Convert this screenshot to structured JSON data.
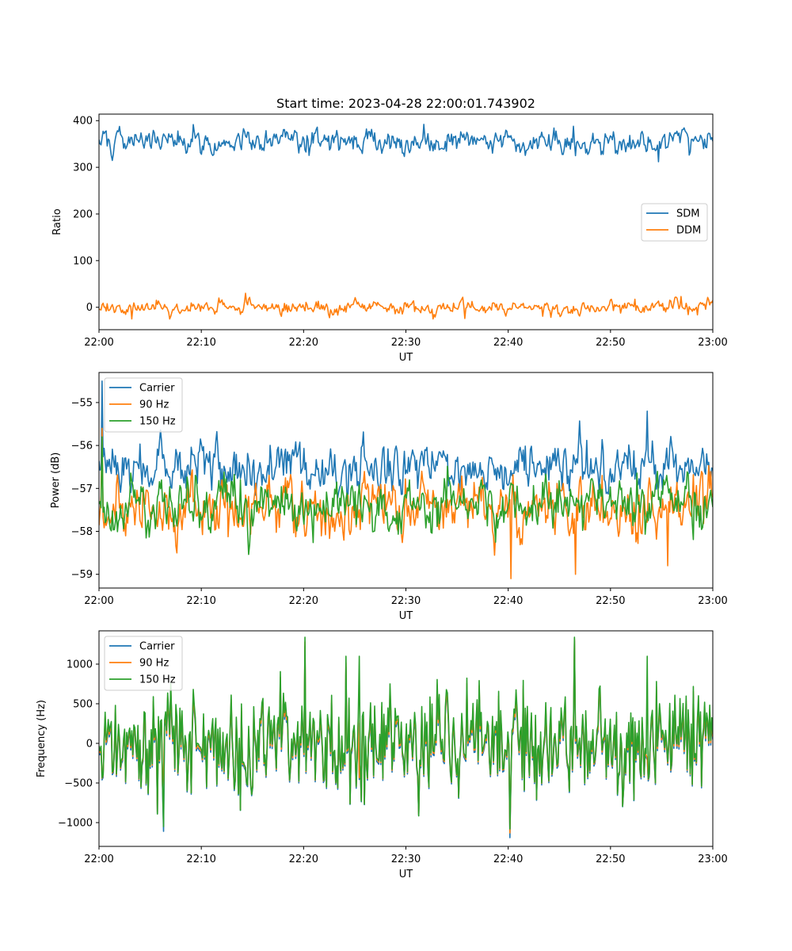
{
  "chart_data": [
    {
      "type": "line",
      "title": "Start time: 2023-04-28 22:00:01.743902",
      "xlabel": "UT",
      "ylabel": "Ratio",
      "x_range": [
        "22:00",
        "23:00"
      ],
      "x_ticks": [
        "22:00",
        "22:10",
        "22:20",
        "22:30",
        "22:40",
        "22:50",
        "23:00"
      ],
      "ylim": [
        -48,
        414
      ],
      "y_ticks": [
        400,
        300,
        200,
        100,
        0
      ],
      "y_tick_labels": [
        "400",
        "300",
        "200",
        "100",
        "0"
      ],
      "grid": false,
      "legend_position": "center-right",
      "series": [
        {
          "name": "SDM",
          "color": "#1f77b4",
          "mean": 357,
          "spread": 13,
          "min": 312,
          "max": 392,
          "peaks": [
            {
              "x": "22:31.8",
              "y": 392
            },
            {
              "x": "22:46.4",
              "y": 388
            }
          ],
          "dips": [
            {
              "x": "22:54.7",
              "y": 312
            },
            {
              "x": "22:46.6",
              "y": 325
            }
          ]
        },
        {
          "name": "DDM",
          "color": "#ff7f0e",
          "mean": 0,
          "spread": 8,
          "min": -25,
          "max": 30,
          "peaks": [
            {
              "x": "22:14.3",
              "y": 30
            }
          ],
          "dips": [
            {
              "x": "22:03.2",
              "y": -25
            },
            {
              "x": "22:35.8",
              "y": -24
            }
          ]
        }
      ]
    },
    {
      "type": "line",
      "title": "",
      "xlabel": "UT",
      "ylabel": "Power (dB)",
      "x_range": [
        "22:00",
        "23:00"
      ],
      "x_ticks": [
        "22:00",
        "22:10",
        "22:20",
        "22:30",
        "22:40",
        "22:50",
        "23:00"
      ],
      "ylim": [
        -59.32,
        -54.3
      ],
      "y_ticks": [
        -55,
        -56,
        -57,
        -58,
        -59
      ],
      "y_tick_labels": [
        "−55",
        "−56",
        "−57",
        "−58",
        "−59"
      ],
      "grid": false,
      "legend_position": "top-left",
      "series": [
        {
          "name": "Carrier",
          "color": "#1f77b4",
          "mean": -56.5,
          "spread": 0.3,
          "min": -57.6,
          "max": -54.5,
          "peaks": [
            {
              "x": "22:00.3",
              "y": -54.5
            },
            {
              "x": "22:53.6",
              "y": -55.2
            }
          ],
          "dips": []
        },
        {
          "name": "90 Hz",
          "color": "#ff7f0e",
          "mean": -57.5,
          "spread": 0.35,
          "min": -59.1,
          "max": -55.6,
          "peaks": [
            {
              "x": "22:00.3",
              "y": -55.6
            }
          ],
          "dips": [
            {
              "x": "22:40.3",
              "y": -59.1
            },
            {
              "x": "22:46.6",
              "y": -59.0
            },
            {
              "x": "22:55.6",
              "y": -58.8
            }
          ]
        },
        {
          "name": "150 Hz",
          "color": "#2ca02c",
          "mean": -57.4,
          "spread": 0.3,
          "min": -58.6,
          "max": -55.8,
          "peaks": [
            {
              "x": "22:00.3",
              "y": -55.8
            }
          ],
          "dips": []
        }
      ]
    },
    {
      "type": "line",
      "title": "",
      "xlabel": "UT",
      "ylabel": "Frequency (Hz)",
      "x_range": [
        "22:00",
        "23:00"
      ],
      "x_ticks": [
        "22:00",
        "22:10",
        "22:20",
        "22:30",
        "22:40",
        "22:50",
        "23:00"
      ],
      "ylim": [
        -1300,
        1420
      ],
      "y_ticks": [
        1000,
        500,
        0,
        -500,
        -1000
      ],
      "y_tick_labels": [
        "1000",
        "500",
        "0",
        "−500",
        "−1000"
      ],
      "grid": false,
      "legend_position": "top-left",
      "series": [
        {
          "name": "Carrier",
          "color": "#1f77b4",
          "mean": -20,
          "spread": 330,
          "min": -1190,
          "max": 1300,
          "peaks": [
            {
              "x": "22:46.5",
              "y": 1300
            }
          ],
          "dips": [
            {
              "x": "22:40.2",
              "y": -1190
            },
            {
              "x": "22:06.3",
              "y": -1110
            }
          ]
        },
        {
          "name": "90 Hz",
          "color": "#ff7f0e",
          "mean": 10,
          "spread": 330,
          "min": -1130,
          "max": 1320,
          "peaks": [
            {
              "x": "22:46.5",
              "y": 1320
            }
          ],
          "dips": [
            {
              "x": "22:40.2",
              "y": -1130
            }
          ]
        },
        {
          "name": "150 Hz",
          "color": "#2ca02c",
          "mean": 40,
          "spread": 340,
          "min": -1080,
          "max": 1340,
          "peaks": [
            {
              "x": "22:46.5",
              "y": 1340
            },
            {
              "x": "22:25.4",
              "y": 1100
            },
            {
              "x": "22:53.6",
              "y": 1100
            }
          ],
          "dips": [
            {
              "x": "22:40.2",
              "y": -1080
            },
            {
              "x": "22:06.3",
              "y": -1050
            }
          ]
        }
      ]
    }
  ]
}
